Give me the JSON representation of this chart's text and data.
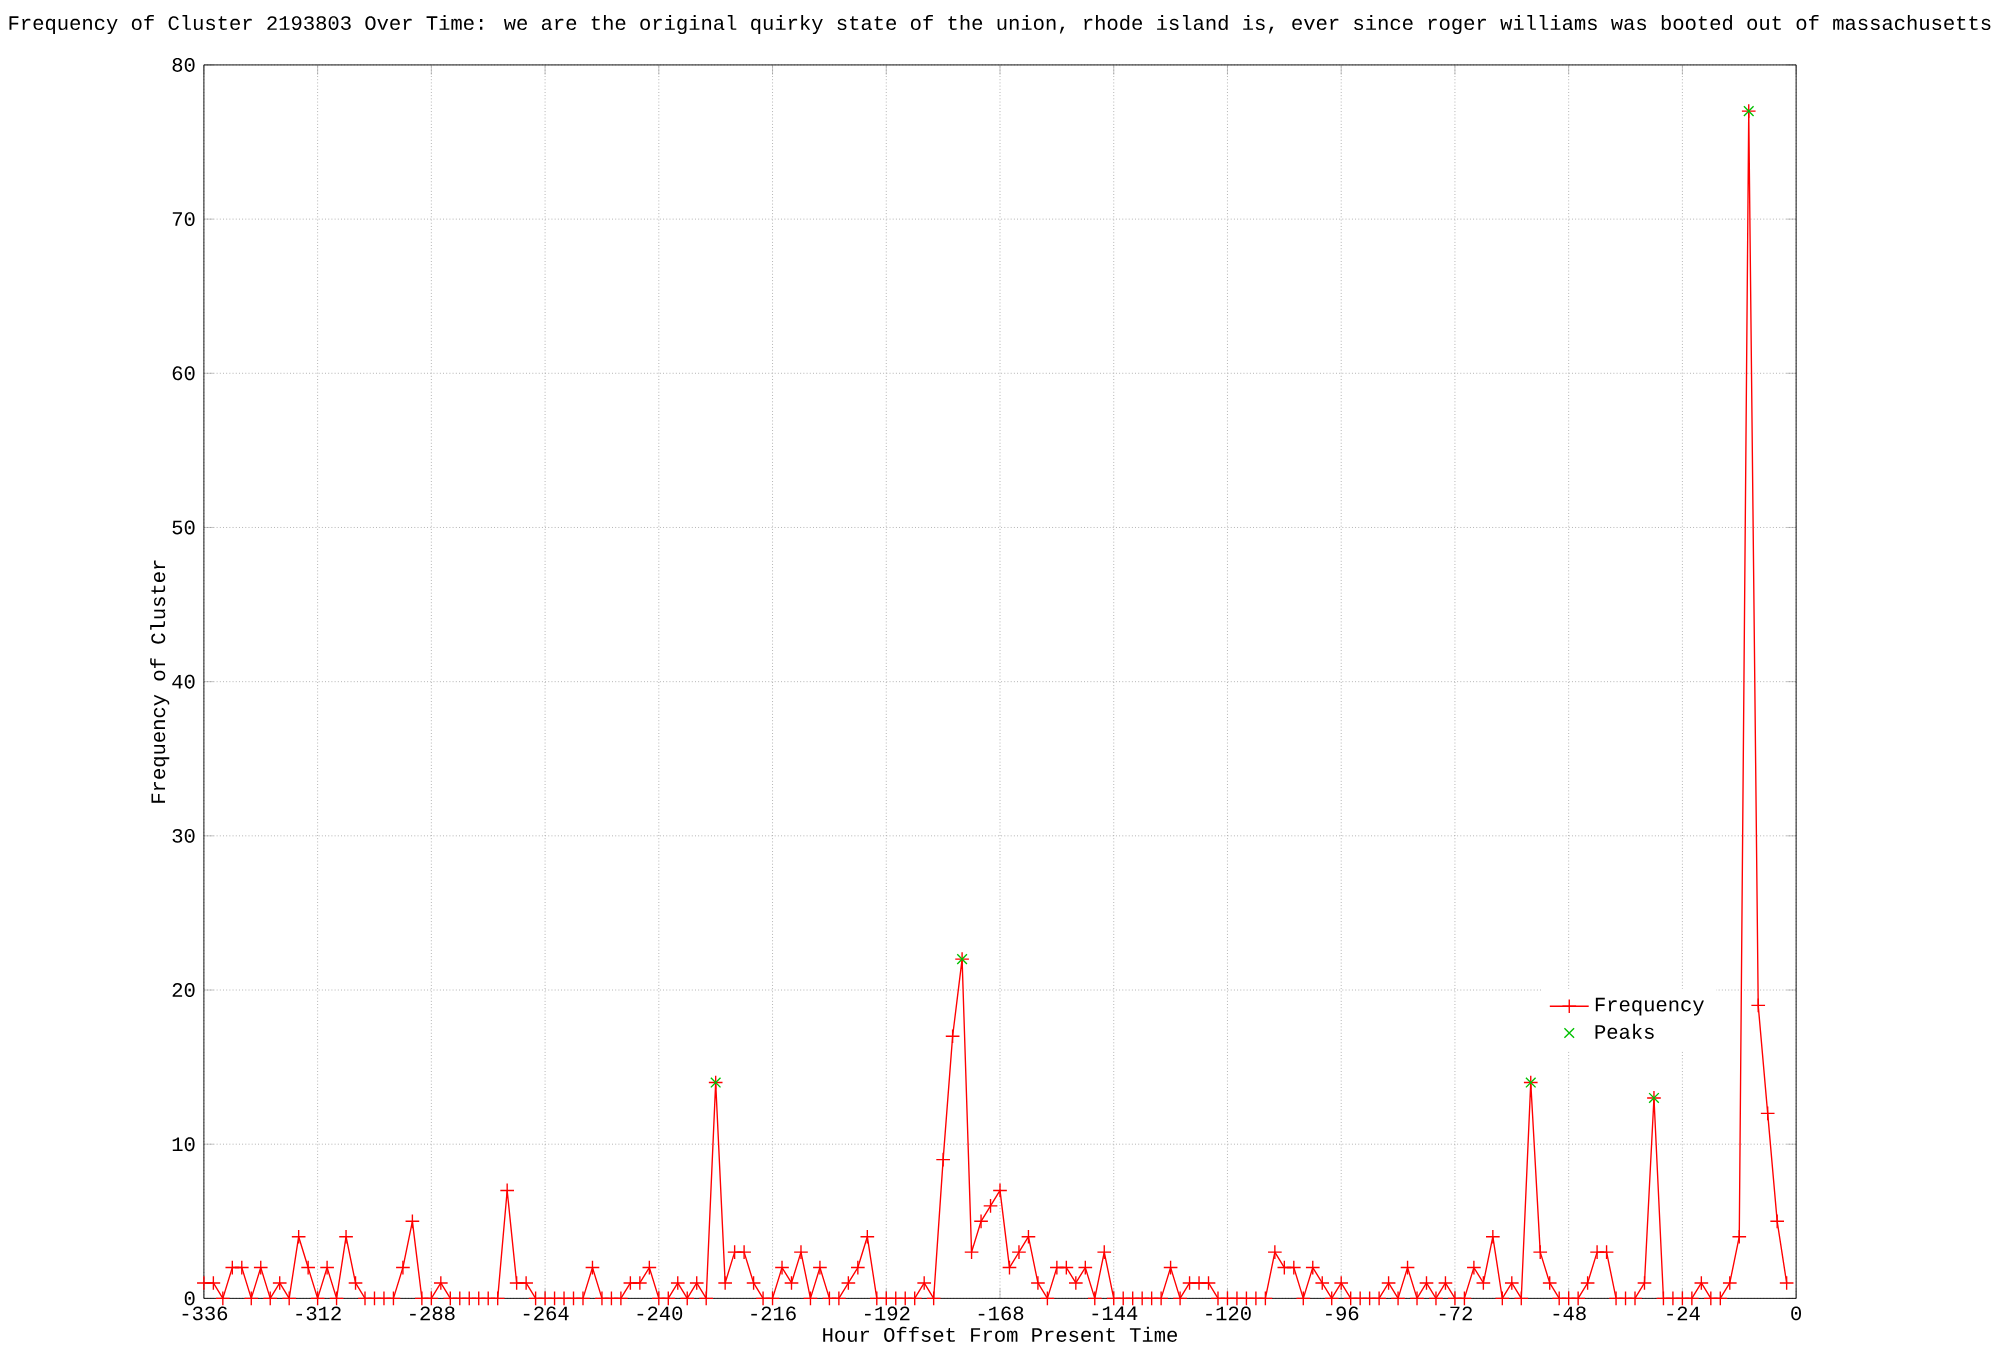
{
  "chart_data": {
    "type": "line",
    "title": "Frequency of Cluster 2193803 Over Time: we are the original quirky state of the union, rhode island is, ever since roger williams was booted out of massachusetts",
    "xlabel": "Hour Offset From Present Time",
    "ylabel": "Frequency of Cluster",
    "x": [
      -336,
      -334,
      -332,
      -330,
      -328,
      -326,
      -324,
      -322,
      -320,
      -318,
      -316,
      -314,
      -312,
      -310,
      -308,
      -306,
      -304,
      -302,
      -300,
      -298,
      -296,
      -294,
      -292,
      -290,
      -288,
      -286,
      -284,
      -282,
      -280,
      -278,
      -276,
      -274,
      -272,
      -270,
      -268,
      -266,
      -264,
      -262,
      -260,
      -258,
      -256,
      -254,
      -252,
      -250,
      -248,
      -246,
      -244,
      -242,
      -240,
      -238,
      -236,
      -234,
      -232,
      -230,
      -228,
      -226,
      -224,
      -222,
      -220,
      -218,
      -216,
      -214,
      -212,
      -210,
      -208,
      -206,
      -204,
      -202,
      -200,
      -198,
      -196,
      -194,
      -192,
      -190,
      -188,
      -186,
      -184,
      -182,
      -180,
      -178,
      -176,
      -174,
      -172,
      -170,
      -168,
      -166,
      -164,
      -162,
      -160,
      -158,
      -156,
      -154,
      -152,
      -150,
      -148,
      -146,
      -144,
      -142,
      -140,
      -138,
      -136,
      -134,
      -132,
      -130,
      -128,
      -126,
      -124,
      -122,
      -120,
      -118,
      -116,
      -114,
      -112,
      -110,
      -108,
      -106,
      -104,
      -102,
      -100,
      -98,
      -96,
      -94,
      -92,
      -90,
      -88,
      -86,
      -84,
      -82,
      -80,
      -78,
      -76,
      -74,
      -72,
      -70,
      -68,
      -66,
      -64,
      -62,
      -60,
      -58,
      -56,
      -54,
      -52,
      -50,
      -48,
      -46,
      -44,
      -42,
      -40,
      -38,
      -36,
      -34,
      -32,
      -30,
      -28,
      -26,
      -24,
      -22,
      -20,
      -18,
      -16,
      -14,
      -12,
      -10,
      -8,
      -6,
      -4,
      -2
    ],
    "series": [
      {
        "name": "Frequency",
        "type": "line",
        "marker": "cross",
        "color": "#ff0000",
        "values": [
          1,
          1,
          0,
          2,
          2,
          0,
          2,
          0,
          1,
          0,
          4,
          2,
          0,
          2,
          0,
          4,
          1,
          0,
          0,
          0,
          0,
          2,
          5,
          0,
          0,
          1,
          0,
          0,
          0,
          0,
          0,
          0,
          7,
          1,
          1,
          0,
          0,
          0,
          0,
          0,
          0,
          2,
          0,
          0,
          0,
          1,
          1,
          2,
          0,
          0,
          1,
          0,
          1,
          0,
          14,
          1,
          3,
          3,
          1,
          0,
          0,
          2,
          1,
          3,
          0,
          2,
          0,
          0,
          1,
          2,
          4,
          0,
          0,
          0,
          0,
          0,
          1,
          0,
          9,
          17,
          22,
          3,
          5,
          6,
          7,
          2,
          3,
          4,
          1,
          0,
          2,
          2,
          1,
          2,
          0,
          3,
          0,
          0,
          0,
          0,
          0,
          0,
          2,
          0,
          1,
          1,
          1,
          0,
          0,
          0,
          0,
          0,
          0,
          3,
          2,
          2,
          0,
          2,
          1,
          0,
          1,
          0,
          0,
          0,
          0,
          1,
          0,
          2,
          0,
          1,
          0,
          1,
          0,
          0,
          2,
          1,
          4,
          0,
          1,
          0,
          14,
          3,
          1,
          0,
          0,
          0,
          1,
          3,
          3,
          0,
          0,
          0,
          1,
          13,
          0,
          0,
          0,
          0,
          1,
          0,
          0,
          1,
          4,
          77,
          19,
          12,
          5,
          1
        ]
      },
      {
        "name": "Peaks",
        "type": "scatter",
        "marker": "cross",
        "color": "#00c000",
        "x": [
          -228,
          -176,
          -56,
          -30,
          -10
        ],
        "values": [
          14,
          22,
          14,
          13,
          77
        ]
      }
    ],
    "xlim": [
      -336,
      0
    ],
    "xticks": [
      -336,
      -312,
      -288,
      -264,
      -240,
      -216,
      -192,
      -168,
      -144,
      -120,
      -96,
      -72,
      -48,
      -24,
      0
    ],
    "ylim": [
      0,
      80
    ],
    "yticks": [
      0,
      10,
      20,
      30,
      40,
      50,
      60,
      70,
      80
    ],
    "grid": true,
    "legend": "bottom right"
  }
}
